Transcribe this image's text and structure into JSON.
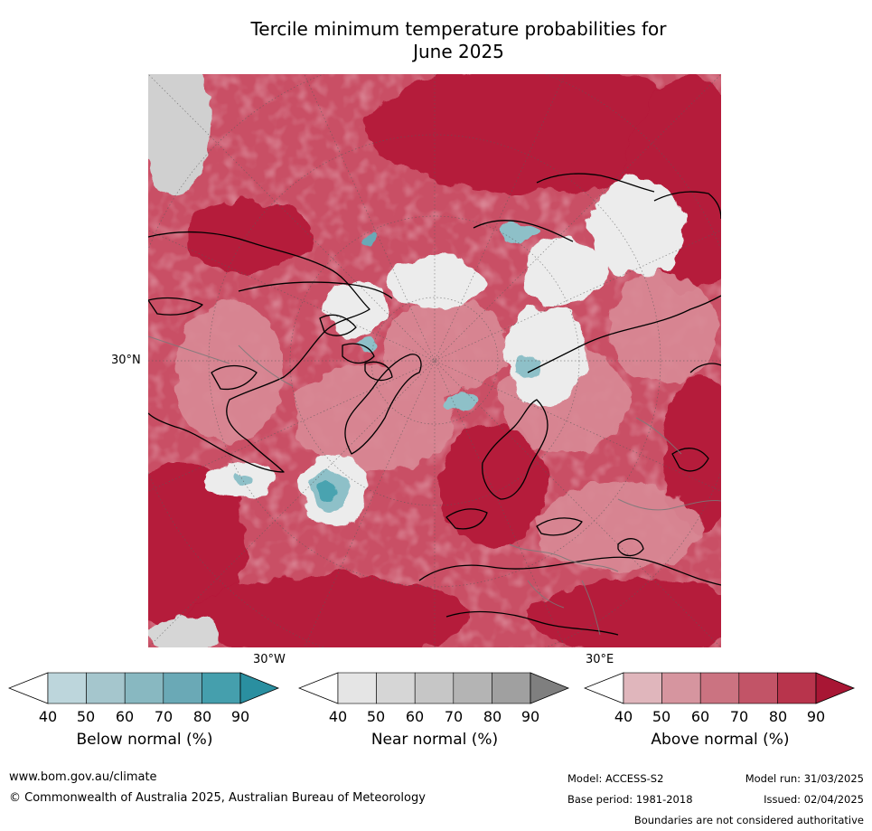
{
  "title_line1": "Tercile minimum temperature probabilities for",
  "title_line2": "June 2025",
  "map": {
    "lat_label": "30°N",
    "lon_label_west": "30°W",
    "lon_label_east": "30°E",
    "colors": {
      "above_dark": "#b51a3a",
      "above_mid": "#c94f65",
      "above_light": "#d98a96",
      "near": "#ececec",
      "below": "#8ec0c8",
      "below_dark": "#4aa3b0"
    }
  },
  "colorbars": [
    {
      "label": "Below normal (%)",
      "ticks": [
        "40",
        "50",
        "60",
        "70",
        "80",
        "90"
      ],
      "colors": [
        "#bdd6dc",
        "#a5c6cd",
        "#88b8c1",
        "#6aa9b6",
        "#459fad",
        "#2a8fa0"
      ]
    },
    {
      "label": "Near normal (%)",
      "ticks": [
        "40",
        "50",
        "60",
        "70",
        "80",
        "90"
      ],
      "colors": [
        "#e5e5e5",
        "#d6d6d6",
        "#c6c6c6",
        "#b4b4b4",
        "#a0a0a0",
        "#7f7f7f"
      ]
    },
    {
      "label": "Above normal (%)",
      "ticks": [
        "40",
        "50",
        "60",
        "70",
        "80",
        "90"
      ],
      "colors": [
        "#e0b6bc",
        "#d6959f",
        "#cb7381",
        "#c25467",
        "#b8344c",
        "#a81634"
      ]
    }
  ],
  "footer": {
    "url": "www.bom.gov.au/climate",
    "copyright": "© Commonwealth of Australia 2025, Australian Bureau of Meteorology",
    "model": "Model: ACCESS-S2",
    "base_period": "Base period: 1981-2018",
    "model_run": "Model run: 31/03/2025",
    "issued": "Issued: 02/04/2025",
    "disclaimer": "Boundaries are not considered authoritative"
  }
}
